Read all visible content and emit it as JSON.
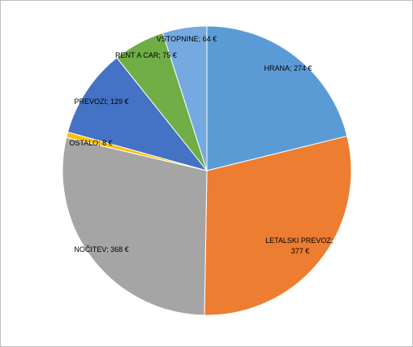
{
  "chart_data": {
    "type": "pie",
    "categories": [
      "HRANA",
      "LETALSKI PREVOZ",
      "NOČITEV",
      "OSTALO",
      "PREVOZI",
      "RENT A CAR",
      "VSTOPNINE"
    ],
    "values": [
      274,
      377,
      368,
      8,
      129,
      75,
      64
    ],
    "value_labels": [
      "274 €",
      "377 €",
      "368 €",
      "8 €",
      "129 €",
      "75 €",
      "64 €"
    ],
    "label_separator": "; ",
    "colors": [
      "#5b9bd5",
      "#ed7d31",
      "#a5a5a5",
      "#ffc000",
      "#4472c4",
      "#70ad47",
      "#74aadf"
    ]
  }
}
